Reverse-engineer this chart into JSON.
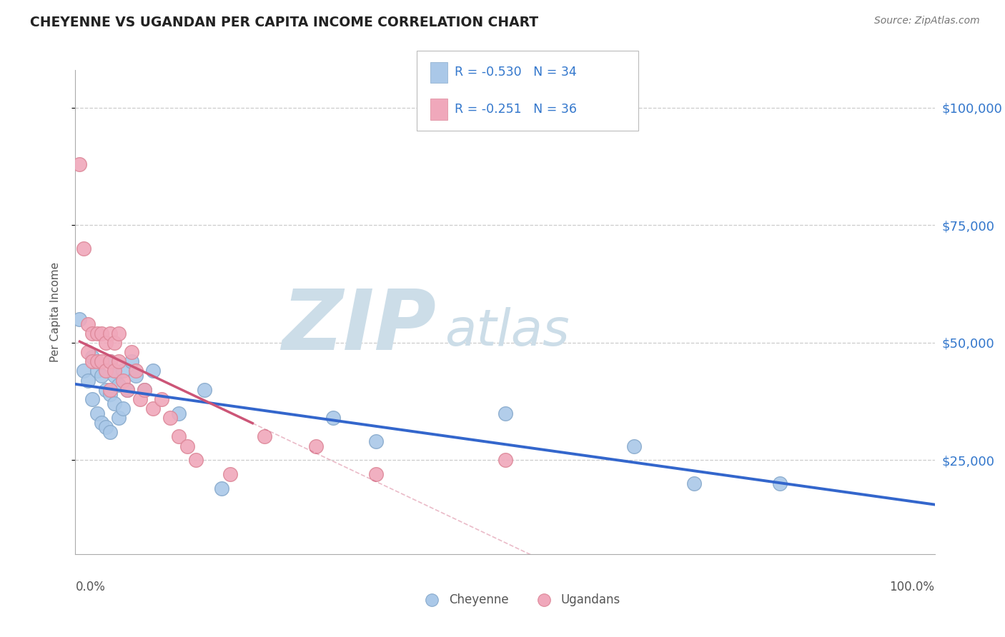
{
  "title": "CHEYENNE VS UGANDAN PER CAPITA INCOME CORRELATION CHART",
  "source": "Source: ZipAtlas.com",
  "ylabel": "Per Capita Income",
  "ytick_labels": [
    "$25,000",
    "$50,000",
    "$75,000",
    "$100,000"
  ],
  "ytick_values": [
    25000,
    50000,
    75000,
    100000
  ],
  "ylim": [
    5000,
    108000
  ],
  "xlim": [
    0.0,
    1.0
  ],
  "cheyenne_color": "#aac8e8",
  "ugandan_color": "#f0a8bb",
  "cheyenne_edge_color": "#88aacc",
  "ugandan_edge_color": "#dd8899",
  "cheyenne_line_color": "#3366cc",
  "ugandan_line_color": "#cc5577",
  "legend_text_color": "#3377cc",
  "cheyenne_R": "-0.530",
  "cheyenne_N": "34",
  "ugandan_R": "-0.251",
  "ugandan_N": "36",
  "watermark_zip_color": "#ccdde8",
  "watermark_atlas_color": "#ccdde8",
  "background_color": "#ffffff",
  "grid_color": "#cccccc",
  "title_color": "#222222",
  "source_color": "#777777",
  "axis_label_color": "#555555",
  "cheyenne_x": [
    0.005,
    0.01,
    0.015,
    0.02,
    0.02,
    0.025,
    0.025,
    0.03,
    0.03,
    0.035,
    0.035,
    0.04,
    0.04,
    0.04,
    0.045,
    0.045,
    0.05,
    0.05,
    0.055,
    0.055,
    0.06,
    0.065,
    0.07,
    0.08,
    0.09,
    0.12,
    0.15,
    0.17,
    0.3,
    0.35,
    0.5,
    0.65,
    0.72,
    0.82
  ],
  "cheyenne_y": [
    55000,
    44000,
    42000,
    47000,
    38000,
    44000,
    35000,
    43000,
    33000,
    40000,
    32000,
    46000,
    39000,
    31000,
    43000,
    37000,
    41000,
    34000,
    44000,
    36000,
    40000,
    46000,
    43000,
    40000,
    44000,
    35000,
    40000,
    19000,
    34000,
    29000,
    35000,
    28000,
    20000,
    20000
  ],
  "ugandan_x": [
    0.005,
    0.01,
    0.015,
    0.015,
    0.02,
    0.02,
    0.025,
    0.025,
    0.03,
    0.03,
    0.035,
    0.035,
    0.04,
    0.04,
    0.04,
    0.045,
    0.045,
    0.05,
    0.05,
    0.055,
    0.06,
    0.065,
    0.07,
    0.075,
    0.08,
    0.09,
    0.1,
    0.11,
    0.12,
    0.13,
    0.14,
    0.18,
    0.22,
    0.28,
    0.35,
    0.5
  ],
  "ugandan_y": [
    88000,
    70000,
    54000,
    48000,
    52000,
    46000,
    52000,
    46000,
    52000,
    46000,
    50000,
    44000,
    52000,
    46000,
    40000,
    50000,
    44000,
    52000,
    46000,
    42000,
    40000,
    48000,
    44000,
    38000,
    40000,
    36000,
    38000,
    34000,
    30000,
    28000,
    25000,
    22000,
    30000,
    28000,
    22000,
    25000
  ]
}
